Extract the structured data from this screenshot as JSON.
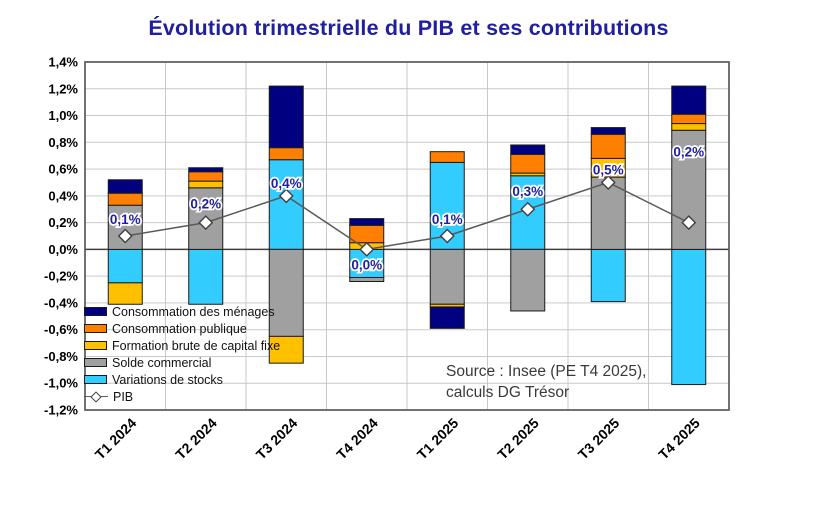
{
  "title": "Évolution trimestrielle du PIB et ses contributions",
  "source": {
    "line1": "Source : Insee (PE T4 2025),",
    "line2": "calculs DG Trésor"
  },
  "colors": {
    "title": "#1f1f9f",
    "data_label": "#1f1f9f",
    "grid": "#c9c9c9",
    "zero_line": "#404040",
    "frame": "#595959",
    "bar_border": "#1a1a1a",
    "pib_line": "#595959",
    "pib_marker_fill": "#ffffff",
    "pib_marker_border": "#404040",
    "axis_text": "#000000",
    "source_text": "#3a3a3a"
  },
  "chart_data": {
    "type": "bar",
    "subtype": "stacked-bars-with-line",
    "title": "Évolution trimestrielle du PIB et ses contributions",
    "categories": [
      "T1 2024",
      "T2 2024",
      "T3 2024",
      "T4 2024",
      "T1 2025",
      "T2 2025",
      "T3 2025",
      "T4 2025"
    ],
    "series": [
      {
        "name": "Consommation des ménages",
        "color": "#000080",
        "values": [
          0.1,
          0.03,
          0.46,
          0.05,
          -0.16,
          0.07,
          0.05,
          0.21
        ]
      },
      {
        "name": "Consommation publique",
        "color": "#FF8000",
        "values": [
          0.09,
          0.07,
          0.09,
          0.13,
          0.08,
          0.14,
          0.18,
          0.07
        ]
      },
      {
        "name": "Formation brute de capital fixe",
        "color": "#FFC000",
        "values": [
          -0.16,
          0.05,
          -0.2,
          0.05,
          -0.02,
          0.02,
          0.14,
          0.05
        ]
      },
      {
        "name": "Solde commercial",
        "color": "#A0A0A0",
        "values": [
          0.33,
          0.46,
          -0.65,
          -0.03,
          -0.41,
          -0.46,
          0.54,
          0.89
        ]
      },
      {
        "name": "Variations de stocks",
        "color": "#33CCFF",
        "values": [
          -0.25,
          -0.41,
          0.67,
          -0.21,
          0.65,
          0.55,
          -0.39,
          -1.01
        ]
      }
    ],
    "stack_order_bottom_to_top": [
      "Variations de stocks",
      "Solde commercial",
      "Formation brute de capital fixe",
      "Consommation publique",
      "Consommation des ménages"
    ],
    "line_series": {
      "name": "PIB",
      "values": [
        0.1,
        0.2,
        0.4,
        0.0,
        0.1,
        0.3,
        0.5,
        0.2
      ],
      "labels": [
        "0,1%",
        "0,2%",
        "0,4%",
        "0,0%",
        "0,1%",
        "0,3%",
        "0,5%",
        "0,2%"
      ],
      "label_dy": [
        -12,
        -14,
        -8,
        20,
        -12,
        -13,
        -8,
        -66
      ]
    },
    "xlabel": "",
    "ylabel": "",
    "ylim": [
      -1.2,
      1.4
    ],
    "ytick_step": 0.2,
    "ytick_labels": [
      "1,4%",
      "1,2%",
      "1,0%",
      "0,8%",
      "0,6%",
      "0,4%",
      "0,2%",
      "0,0%",
      "-0,2%",
      "-0,4%",
      "-0,6%",
      "-0,8%",
      "-1,0%",
      "-1,2%"
    ],
    "grid": true,
    "legend_position": "inside-bottom-left",
    "legend_entries": [
      "Consommation des ménages",
      "Consommation publique",
      "Formation brute de capital fixe",
      "Solde commercial",
      "Variations de stocks",
      "PIB"
    ]
  }
}
